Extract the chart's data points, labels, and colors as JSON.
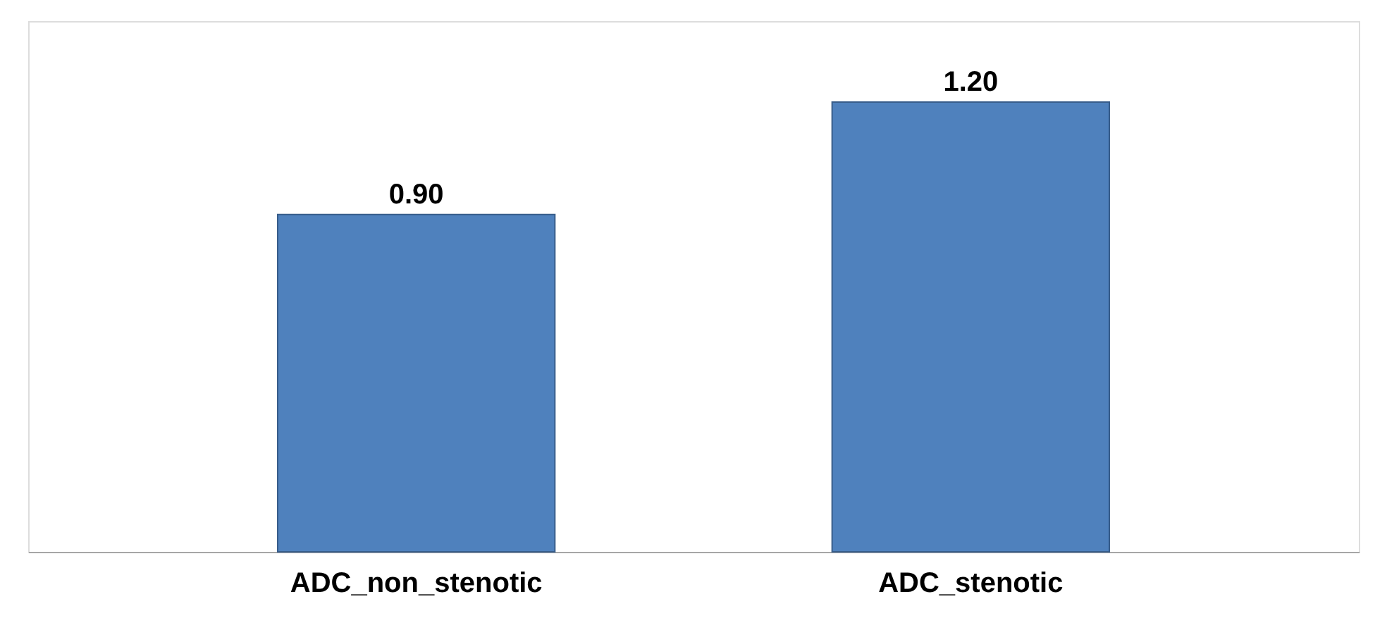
{
  "chart_data": {
    "type": "bar",
    "categories": [
      "ADC_non_stenotic",
      "ADC_stenotic"
    ],
    "values": [
      0.9,
      1.2
    ],
    "value_labels": [
      "0.90",
      "1.20"
    ],
    "color": "#4f81bd"
  }
}
